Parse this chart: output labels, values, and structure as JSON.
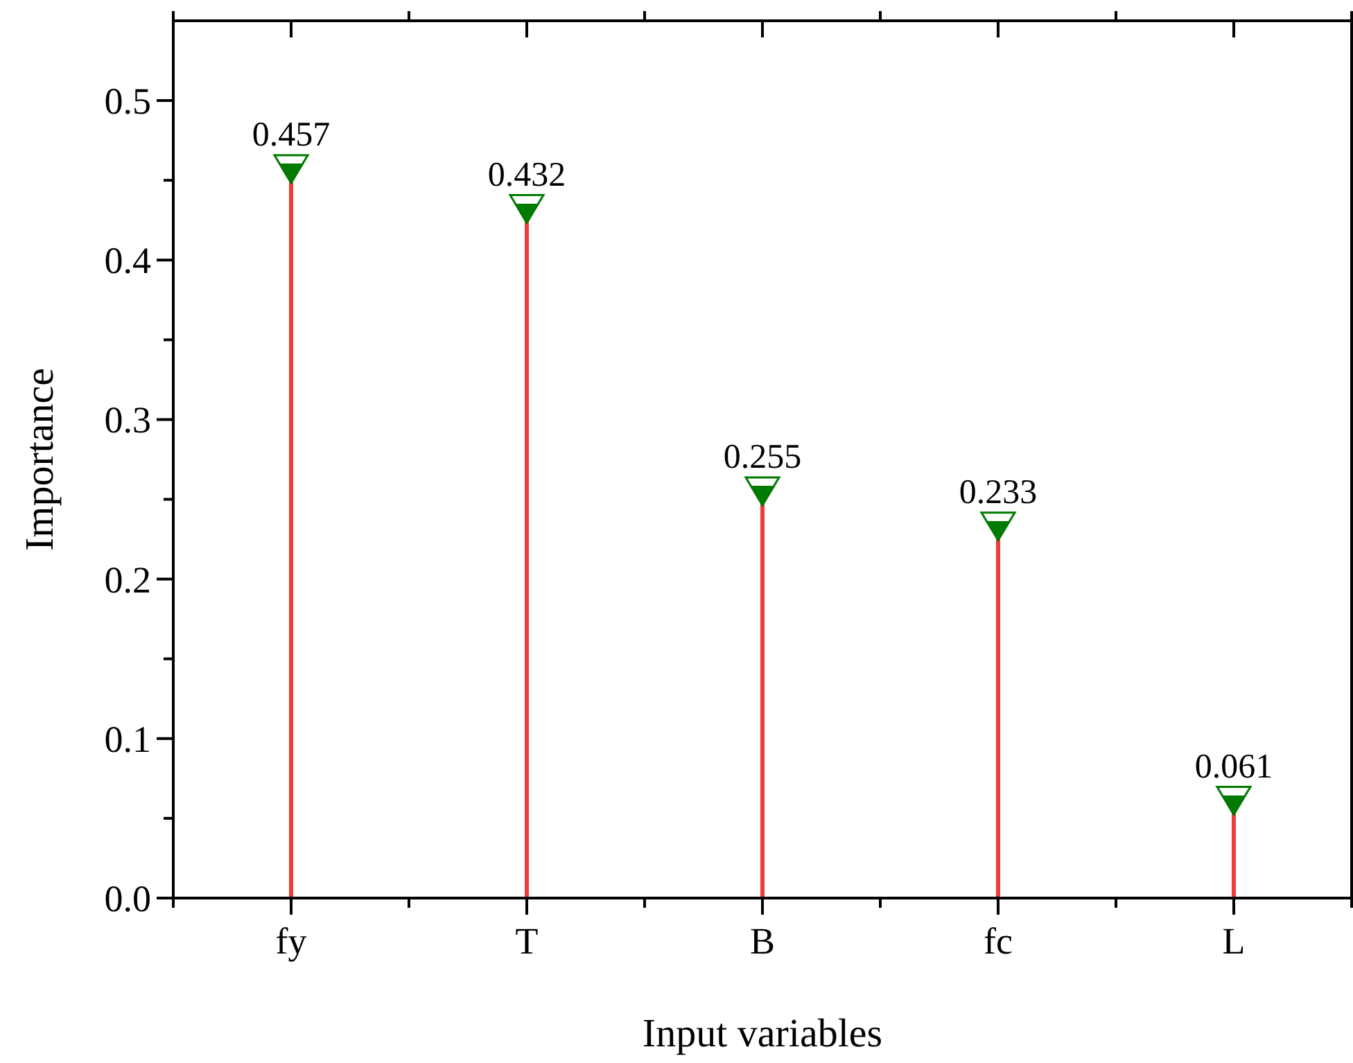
{
  "chart_data": {
    "type": "lollipop",
    "xlabel": "Input variables",
    "ylabel": "Importance",
    "categories": [
      "fy",
      "T",
      "B",
      "fc",
      "L"
    ],
    "series": [
      {
        "color": "#f03c3c",
        "colors": [
          "#007a00",
          "#007a00",
          "#007a00",
          "#007a00",
          "#007a00"
        ],
        "values": [
          0.457,
          0.432,
          0.255,
          0.233,
          0.061
        ]
      }
    ],
    "data_labels": true,
    "marker": "triangle",
    "ylim": [
      0,
      0.55
    ],
    "yticks": [
      {
        "value": 0,
        "label": "0.0"
      },
      {
        "value": 0.05,
        "label": null
      },
      {
        "value": 0.1,
        "label": "0.1"
      },
      {
        "value": 0.15,
        "label": null
      },
      {
        "value": 0.2,
        "label": "0.2"
      },
      {
        "value": 0.25,
        "label": null
      },
      {
        "value": 0.3,
        "label": "0.3"
      },
      {
        "value": 0.35,
        "label": null
      },
      {
        "value": 0.4,
        "label": "0.4"
      },
      {
        "value": 0.45,
        "label": null
      },
      {
        "value": 0.5,
        "label": "0.5"
      }
    ]
  }
}
